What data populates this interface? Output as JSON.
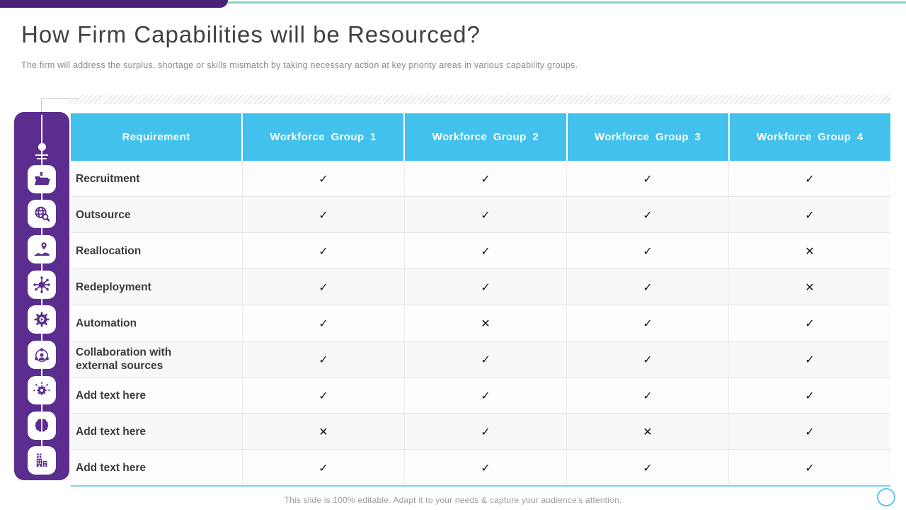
{
  "slide": {
    "title": "How Firm Capabilities will be Resourced?",
    "subtitle": "The firm will address the surplus, shortage or skills mismatch by taking necessary action at key priority areas in various capability groups.",
    "footer_note": "This slide is 100% editable. Adapt it to your needs & capture your audience's attention."
  },
  "colors": {
    "topbar_purple": "#4a2174",
    "sidebar_purple": "#5b2d8e",
    "teal_accent": "#8fd0c5",
    "header_cyan": "#41c1ec",
    "table_bottom_accent": "#7ed3ee",
    "mark_color": "#141414",
    "title_color": "#404045"
  },
  "sidebar": {
    "icons": [
      "folder-icon",
      "globe-search-icon",
      "map-pin-icon",
      "network-hub-icon",
      "gear-play-icon",
      "person-network-icon",
      "gear-arrows-icon",
      "brain-icon",
      "building-icon"
    ]
  },
  "table": {
    "columns": [
      "Requirement",
      "Workforce Group 1",
      "Workforce Group 2",
      "Workforce Group 3",
      "Workforce Group 4"
    ],
    "marks": {
      "check": "✓",
      "cross": "✕"
    },
    "rows": [
      {
        "label": "Recruitment",
        "values": [
          "check",
          "check",
          "check",
          "check"
        ]
      },
      {
        "label": "Outsource",
        "values": [
          "check",
          "check",
          "check",
          "check"
        ]
      },
      {
        "label": "Reallocation",
        "values": [
          "check",
          "check",
          "check",
          "cross"
        ]
      },
      {
        "label": "Redeployment",
        "values": [
          "check",
          "check",
          "check",
          "cross"
        ]
      },
      {
        "label": "Automation",
        "values": [
          "check",
          "cross",
          "check",
          "check"
        ]
      },
      {
        "label": "Collaboration with external sources",
        "values": [
          "check",
          "check",
          "check",
          "check"
        ]
      },
      {
        "label": "Add text here",
        "values": [
          "check",
          "check",
          "check",
          "check"
        ]
      },
      {
        "label": "Add text here",
        "values": [
          "cross",
          "check",
          "cross",
          "check"
        ]
      },
      {
        "label": "Add text here",
        "values": [
          "check",
          "check",
          "check",
          "check"
        ]
      }
    ]
  }
}
